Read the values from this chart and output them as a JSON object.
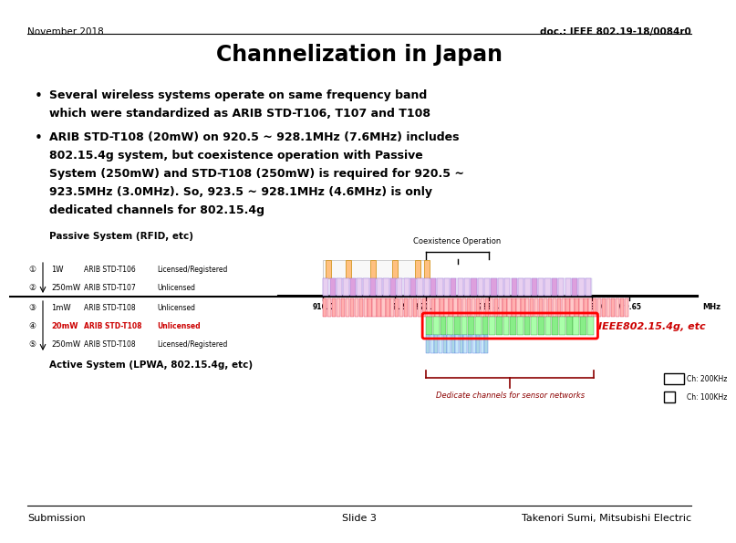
{
  "title": "Channelization in Japan",
  "header_left": "November 2018",
  "header_right": "doc.: IEEE 802.19-18/0084r0",
  "bullet1_line1": "Several wireless systems operate on same frequency band",
  "bullet1_line2": "which were standardized as ARIB STD-T106, T107 and T108",
  "bullet2_line1": "ARIB STD-T108 (20mW) on 920.5 ~ 928.1MHz (7.6MHz) includes",
  "bullet2_line2": "802.15.4g system, but coexistence operation with Passive",
  "bullet2_line3": "System (250mW) and STD-T108 (250mW) is required for 920.5 ~",
  "bullet2_line4": "923.5MHz (3.0MHz). So, 923.5 ~ 928.1MHz (4.6MHz) is only",
  "bullet2_line5": "dedicated channels for 802.15.4g",
  "footer_left": "Submission",
  "footer_center": "Slide 3",
  "footer_right": "Takenori Sumi, Mitsubishi Electric",
  "passive_label": "Passive System (RFID, etc)",
  "active_label": "Active System (LPWA, 802.15.4g, etc)",
  "coexistence_label": "Coexistence Operation",
  "dedicated_label": "Dedicate channels for sensor networks",
  "ieee_label": "IEEE802.15.4g, etc",
  "ch200k_label": "Ch: 200KHz",
  "ch100k_label": "Ch: 100KHz",
  "freq_min": 914.0,
  "freq_max": 931.5,
  "freq_ticks": [
    916.0,
    919.2,
    920.6,
    923.4,
    928.0,
    929.65
  ],
  "freq_unit": "MHz",
  "background_color": "#ffffff"
}
